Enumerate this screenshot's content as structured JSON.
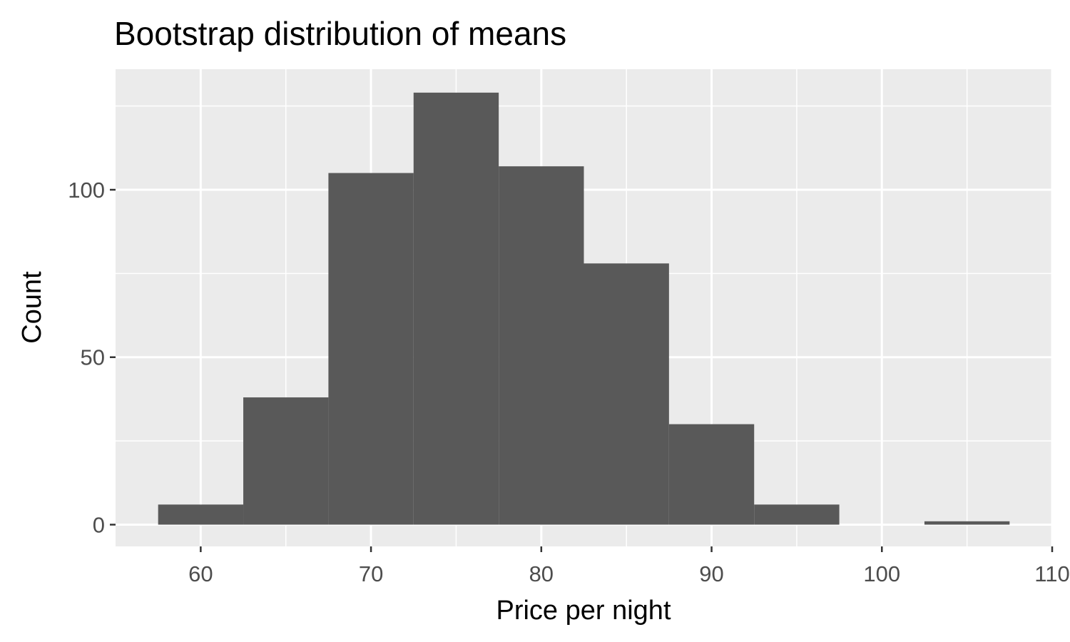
{
  "chart_data": {
    "type": "bar",
    "title": "Bootstrap distribution of means",
    "xlabel": "Price per night",
    "ylabel": "Count",
    "xlim": [
      55,
      110
    ],
    "ylim": [
      -6.5,
      136
    ],
    "x_ticks": [
      60,
      70,
      80,
      90,
      100,
      110
    ],
    "x_tick_labels": [
      "60",
      "70",
      "80",
      "90",
      "100",
      "110"
    ],
    "x_minor_ticks": [
      65,
      75,
      85,
      95,
      105
    ],
    "y_ticks": [
      0,
      50,
      100
    ],
    "y_tick_labels": [
      "0",
      "50",
      "100"
    ],
    "y_minor_ticks": [
      25,
      75,
      125
    ],
    "bin_width": 5,
    "bins": [
      {
        "x_min": 57.5,
        "x_max": 62.5,
        "count": 6
      },
      {
        "x_min": 62.5,
        "x_max": 67.5,
        "count": 38
      },
      {
        "x_min": 67.5,
        "x_max": 72.5,
        "count": 105
      },
      {
        "x_min": 72.5,
        "x_max": 77.5,
        "count": 129
      },
      {
        "x_min": 77.5,
        "x_max": 82.5,
        "count": 107
      },
      {
        "x_min": 82.5,
        "x_max": 87.5,
        "count": 78
      },
      {
        "x_min": 87.5,
        "x_max": 92.5,
        "count": 30
      },
      {
        "x_min": 92.5,
        "x_max": 97.5,
        "count": 6
      },
      {
        "x_min": 97.5,
        "x_max": 102.5,
        "count": 0
      },
      {
        "x_min": 102.5,
        "x_max": 107.5,
        "count": 1
      }
    ],
    "grid": true,
    "legend": "none",
    "colors": {
      "panel": "#ebebeb",
      "gridline": "#ffffff",
      "bar": "#595959",
      "tick_label": "#4d4d4d",
      "text": "#000000"
    }
  }
}
